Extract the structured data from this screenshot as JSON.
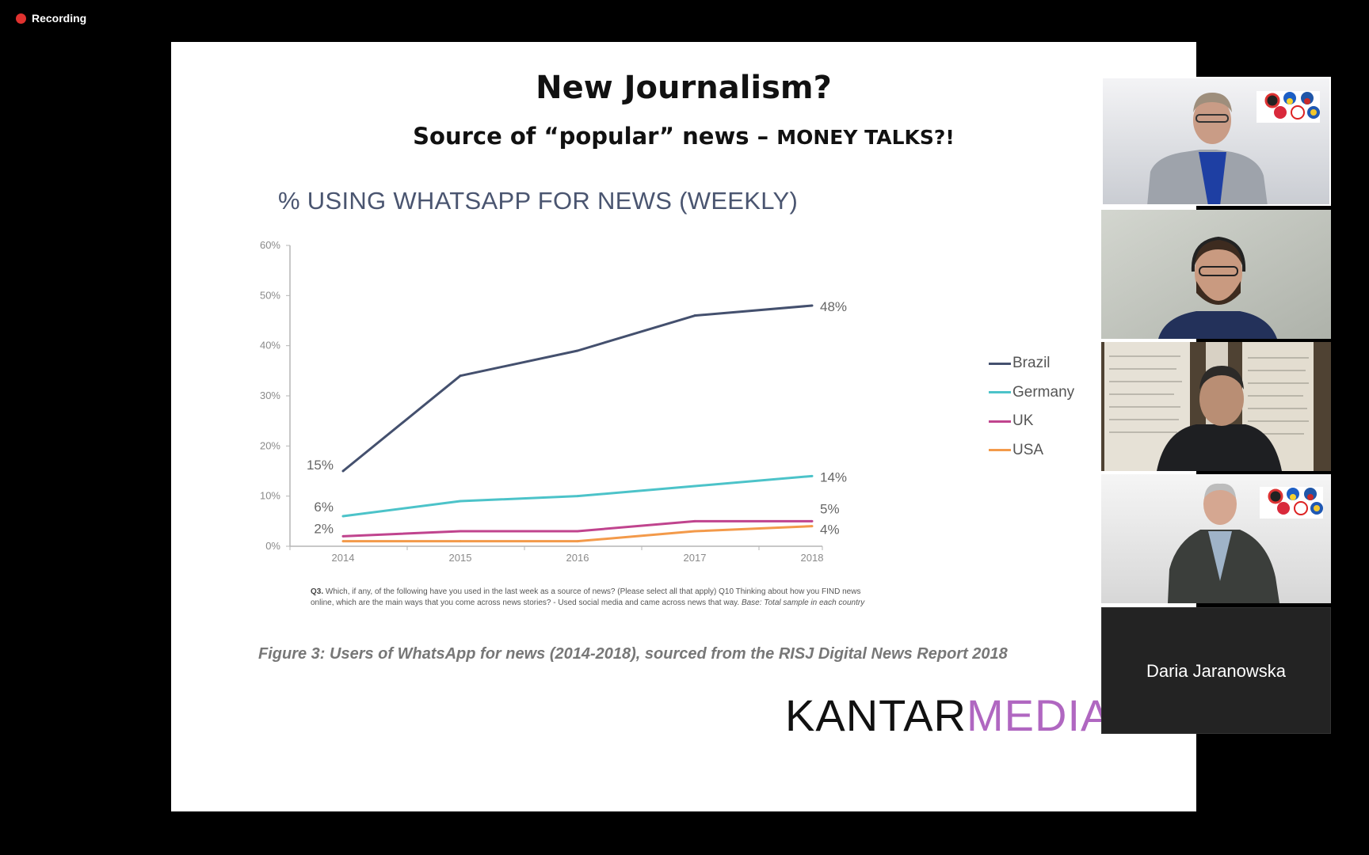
{
  "recording": {
    "label": "Recording"
  },
  "slide": {
    "title": "New Journalism?",
    "subtitle_main": "Source of “popular” news – ",
    "subtitle_caps": "MONEY TALKS?!",
    "chart_title": "% USING WHATSAPP FOR NEWS (WEEKLY)",
    "footnote_q": "Q3.",
    "footnote_text": "Which, if any, of the following have you used in the last week as a source of news? (Please select all that apply) Q10 Thinking about how you FIND news online, which are the main ways that you come across news stories? - Used social media and came across news that way.",
    "footnote_base": "Base: Total sample in each country",
    "caption": "Figure 3: Users of WhatsApp for news (2014-2018), sourced from the RISJ Digital News Report 2018",
    "logo_kantar": "KANTAR",
    "logo_media": "MEDIA"
  },
  "chart_data": {
    "type": "line",
    "title": "% USING WHATSAPP FOR NEWS (WEEKLY)",
    "x": [
      "2014",
      "2015",
      "2016",
      "2017",
      "2018"
    ],
    "y_ticks": [
      "0%",
      "10%",
      "20%",
      "30%",
      "40%",
      "50%",
      "60%"
    ],
    "ylim": [
      0,
      60
    ],
    "legend_position": "right",
    "series": [
      {
        "name": "Brazil",
        "color": "#44506e",
        "values": [
          15,
          34,
          39,
          46,
          48
        ],
        "start_label": "15%",
        "end_label": "48%"
      },
      {
        "name": "Germany",
        "color": "#4cc3c9",
        "values": [
          6,
          9,
          10,
          12,
          14
        ],
        "start_label": "6%",
        "end_label": "14%"
      },
      {
        "name": "UK",
        "color": "#c0448e",
        "values": [
          2,
          3,
          3,
          5,
          5
        ],
        "start_label": "2%",
        "end_label": "5%"
      },
      {
        "name": "USA",
        "color": "#f39a4a",
        "values": [
          1,
          1,
          1,
          3,
          4
        ],
        "start_label": "",
        "end_label": "4%"
      }
    ]
  },
  "participants": [
    {
      "name": "",
      "bg": "#e9eaec"
    },
    {
      "name": "",
      "bg": "#c5c8c1"
    },
    {
      "name": "",
      "bg": "#6a5a48"
    },
    {
      "name": "",
      "bg": "#eceaea"
    },
    {
      "name": "Daria Jaranowska",
      "bg": "#232323"
    }
  ]
}
